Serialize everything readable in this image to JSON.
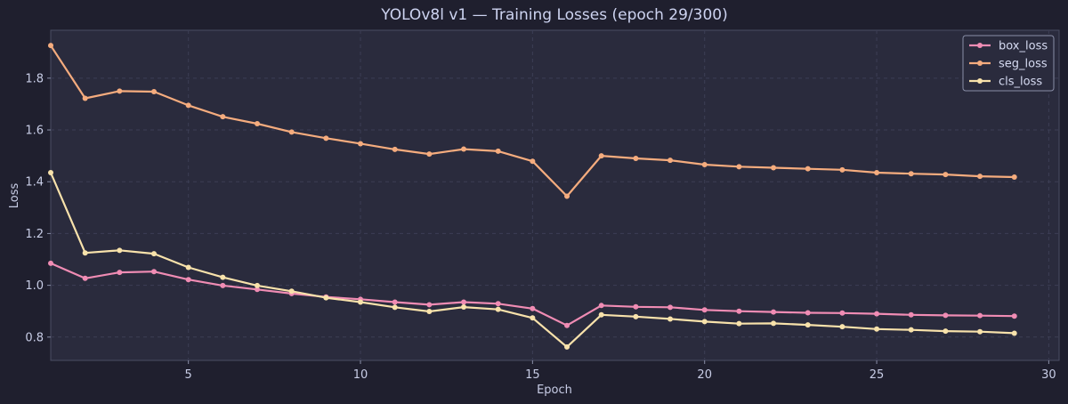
{
  "chart_data": {
    "type": "line",
    "title": "YOLOv8l v1 — Training Losses  (epoch 29/300)",
    "xlabel": "Epoch",
    "ylabel": "Loss",
    "xlim": [
      1,
      30.3
    ],
    "ylim": [
      0.71,
      1.985
    ],
    "x_ticks": [
      5,
      10,
      15,
      20,
      25,
      30
    ],
    "y_ticks": [
      0.8,
      1.0,
      1.2,
      1.4,
      1.6,
      1.8
    ],
    "grid": true,
    "legend_position": "top-right",
    "x": [
      1,
      2,
      3,
      4,
      5,
      6,
      7,
      8,
      9,
      10,
      11,
      12,
      13,
      14,
      15,
      16,
      17,
      18,
      19,
      20,
      21,
      22,
      23,
      24,
      25,
      26,
      27,
      28,
      29
    ],
    "series": [
      {
        "name": "box_loss",
        "color": "#f08cb4",
        "values": [
          1.085,
          1.027,
          1.05,
          1.053,
          1.022,
          0.999,
          0.984,
          0.968,
          0.955,
          0.946,
          0.935,
          0.925,
          0.935,
          0.929,
          0.91,
          0.845,
          0.922,
          0.917,
          0.915,
          0.905,
          0.9,
          0.897,
          0.894,
          0.893,
          0.89,
          0.886,
          0.884,
          0.883,
          0.881
        ]
      },
      {
        "name": "seg_loss",
        "color": "#f5ac7e",
        "values": [
          1.926,
          1.722,
          1.75,
          1.748,
          1.695,
          1.651,
          1.624,
          1.592,
          1.568,
          1.547,
          1.525,
          1.507,
          1.526,
          1.518,
          1.479,
          1.344,
          1.5,
          1.49,
          1.483,
          1.466,
          1.458,
          1.454,
          1.45,
          1.446,
          1.435,
          1.431,
          1.428,
          1.421,
          1.418
        ]
      },
      {
        "name": "cls_loss",
        "color": "#f8e2ab",
        "values": [
          1.435,
          1.125,
          1.135,
          1.122,
          1.069,
          1.031,
          0.999,
          0.977,
          0.952,
          0.935,
          0.915,
          0.899,
          0.916,
          0.907,
          0.874,
          0.762,
          0.886,
          0.879,
          0.87,
          0.86,
          0.852,
          0.853,
          0.847,
          0.84,
          0.831,
          0.828,
          0.823,
          0.821,
          0.815
        ]
      }
    ]
  },
  "colors": {
    "page_background": "#1f1f2e",
    "plot_background": "#2a2b3d",
    "grid": "#3c3e55",
    "text": "#c8cde6"
  }
}
